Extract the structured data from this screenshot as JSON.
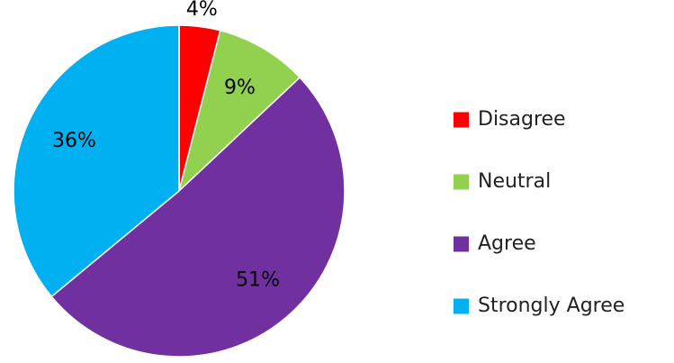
{
  "chart_data": {
    "type": "pie",
    "title": "",
    "start_angle_deg": 0,
    "direction": "clockwise",
    "legend_position": "right",
    "slices": [
      {
        "name": "Disagree",
        "value": 4,
        "label": "4%",
        "color": "#ff0000"
      },
      {
        "name": "Neutral",
        "value": 9,
        "label": "9%",
        "color": "#92d050"
      },
      {
        "name": "Agree",
        "value": 51,
        "label": "51%",
        "color": "#7030a0"
      },
      {
        "name": "Strongly Agree",
        "value": 36,
        "label": "36%",
        "color": "#00b0f0"
      }
    ]
  }
}
